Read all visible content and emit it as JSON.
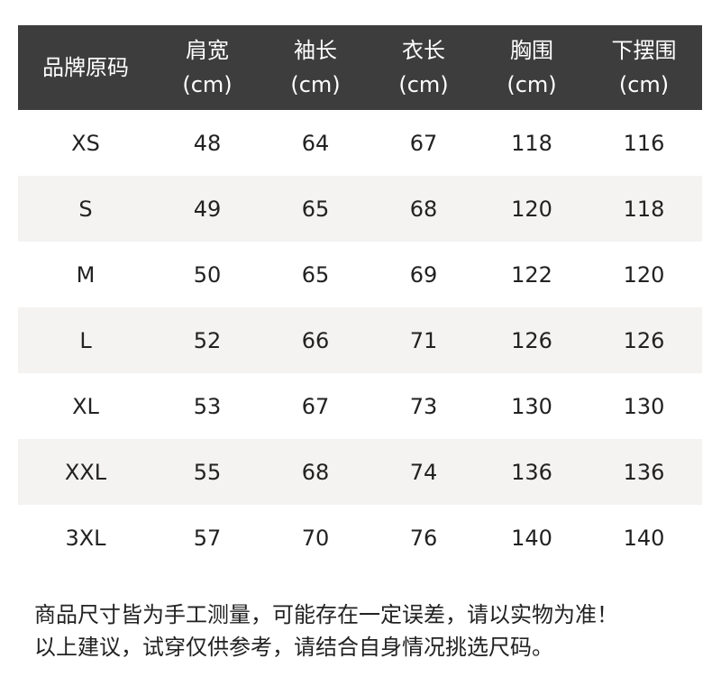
{
  "header": {
    "columns": [
      {
        "name": "品牌原码",
        "unit": ""
      },
      {
        "name": "肩宽",
        "unit": "(cm)"
      },
      {
        "name": "袖长",
        "unit": "(cm)"
      },
      {
        "name": "衣长",
        "unit": "(cm)"
      },
      {
        "name": "胸围",
        "unit": "(cm)"
      },
      {
        "name": "下摆围",
        "unit": "(cm)"
      }
    ],
    "background": "#3d3d3d"
  },
  "rows": [
    [
      "XS",
      "48",
      "64",
      "67",
      "118",
      "116"
    ],
    [
      "S",
      "49",
      "65",
      "68",
      "120",
      "118"
    ],
    [
      "M",
      "50",
      "65",
      "69",
      "122",
      "120"
    ],
    [
      "L",
      "52",
      "66",
      "71",
      "126",
      "126"
    ],
    [
      "XL",
      "53",
      "67",
      "73",
      "130",
      "130"
    ],
    [
      "XXL",
      "55",
      "68",
      "74",
      "136",
      "136"
    ],
    [
      "3XL",
      "57",
      "70",
      "76",
      "140",
      "140"
    ]
  ],
  "notes": [
    "商品尺寸皆为手工测量，可能存在一定误差，请以实物为准！",
    "以上建议，试穿仅供参考，请结合自身情况挑选尺码。"
  ]
}
